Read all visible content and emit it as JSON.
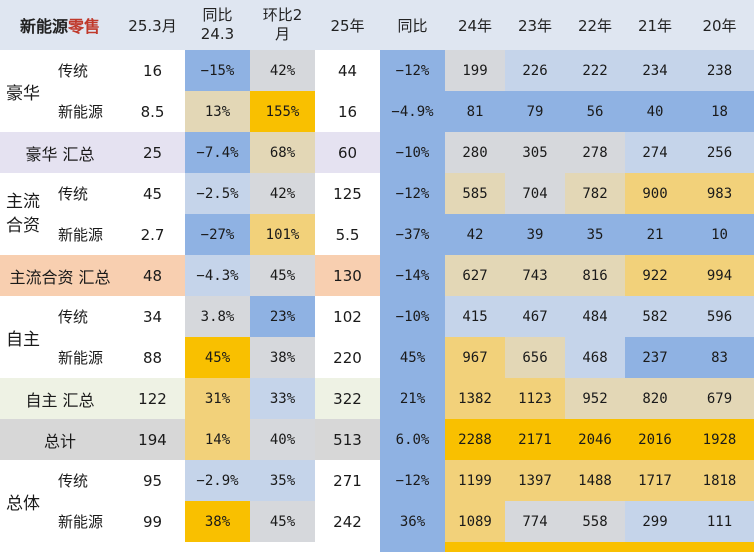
{
  "header": {
    "title_main": "新能源",
    "title_red": "零售",
    "col_253": "25.3月",
    "col_yoy_1": "同比",
    "col_yoy_2": "24.3",
    "col_mom_1": "环比2",
    "col_mom_2": "月",
    "col_25": "25年",
    "col_yoy25": "同比",
    "col_24": "24年",
    "col_23": "23年",
    "col_22": "22年",
    "col_21": "21年",
    "col_20": "20年"
  },
  "groups": {
    "luxury": "豪华",
    "mainstream_1": "主流",
    "mainstream_2": "合资",
    "domestic": "自主",
    "overall": "总体"
  },
  "rows": [
    {
      "label": "传统",
      "v": [
        "16",
        "−15%",
        "42%",
        "44",
        "−12%",
        "199",
        "226",
        "222",
        "234",
        "238"
      ]
    },
    {
      "label": "新能源",
      "v": [
        "8.5",
        "13%",
        "155%",
        "16",
        "−4.9%",
        "81",
        "79",
        "56",
        "40",
        "18"
      ]
    },
    {
      "label": "豪华 汇总",
      "v": [
        "25",
        "−7.4%",
        "68%",
        "60",
        "−10%",
        "280",
        "305",
        "278",
        "274",
        "256"
      ]
    },
    {
      "label": "传统",
      "v": [
        "45",
        "−2.5%",
        "42%",
        "125",
        "−12%",
        "585",
        "704",
        "782",
        "900",
        "983"
      ]
    },
    {
      "label": "新能源",
      "v": [
        "2.7",
        "−27%",
        "101%",
        "5.5",
        "−37%",
        "42",
        "39",
        "35",
        "21",
        "10"
      ]
    },
    {
      "label": "主流合资 汇总",
      "v": [
        "48",
        "−4.3%",
        "45%",
        "130",
        "−14%",
        "627",
        "743",
        "816",
        "922",
        "994"
      ]
    },
    {
      "label": "传统",
      "v": [
        "34",
        "3.8%",
        "23%",
        "102",
        "−10%",
        "415",
        "467",
        "484",
        "582",
        "596"
      ]
    },
    {
      "label": "新能源",
      "v": [
        "88",
        "45%",
        "38%",
        "220",
        "45%",
        "967",
        "656",
        "468",
        "237",
        "83"
      ]
    },
    {
      "label": "自主 汇总",
      "v": [
        "122",
        "31%",
        "33%",
        "322",
        "21%",
        "1382",
        "1123",
        "952",
        "820",
        "679"
      ]
    },
    {
      "label": "总计",
      "v": [
        "194",
        "14%",
        "40%",
        "513",
        "6.0%",
        "2288",
        "2171",
        "2046",
        "2016",
        "1928"
      ]
    },
    {
      "label": "传统",
      "v": [
        "95",
        "−2.9%",
        "35%",
        "271",
        "−12%",
        "1199",
        "1397",
        "1488",
        "1717",
        "1818"
      ]
    },
    {
      "label": "新能源",
      "v": [
        "99",
        "38%",
        "45%",
        "242",
        "36%",
        "1089",
        "774",
        "558",
        "299",
        "111"
      ]
    }
  ],
  "colors": {
    "header_bg": "#dfe6f1",
    "blue_strong": "#8fb2e3",
    "blue_light": "#c5d4ea",
    "grey": "#d6d8dc",
    "tan": "#e3d7b6",
    "gold_light": "#f2d17a",
    "gold_strong": "#f9c000",
    "luxury_total_bg": "#e5e2f1",
    "mainstream_total_bg": "#f8cfb0",
    "domestic_total_bg": "#eef2e4",
    "grand_total_bg": "#d7d7d7"
  }
}
